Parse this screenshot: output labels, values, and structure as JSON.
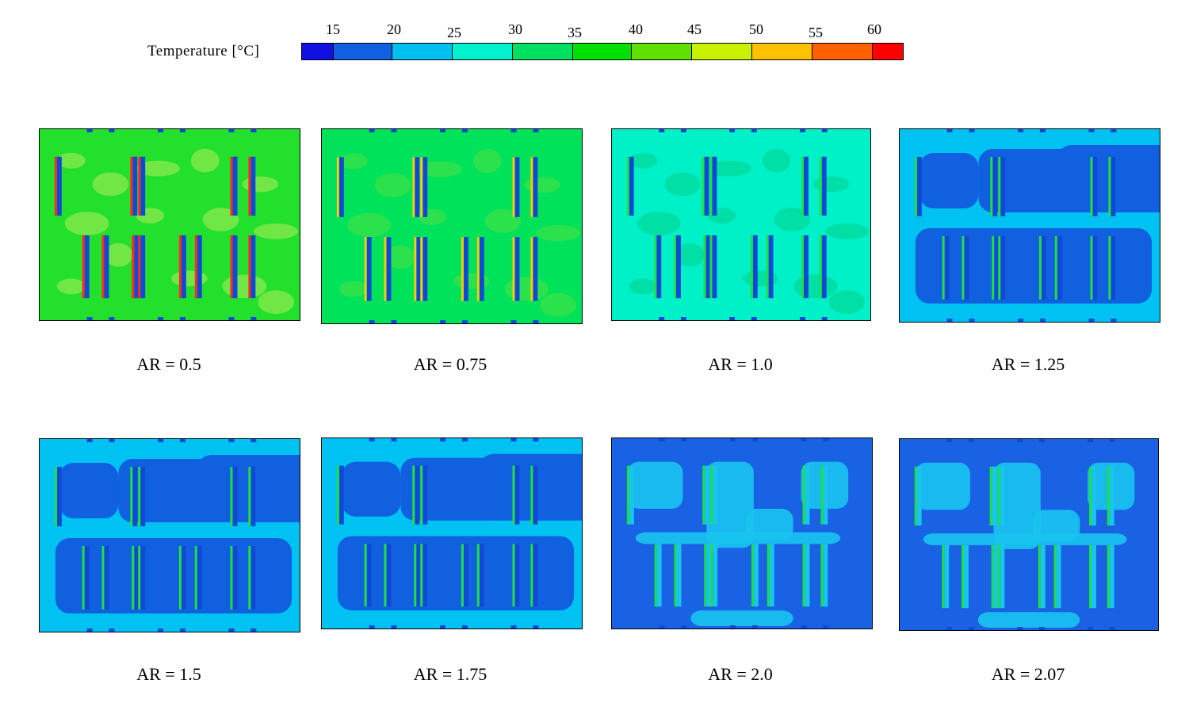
{
  "legend": {
    "title": "Temperature [°C]",
    "ticks": [
      "15",
      "20",
      "25",
      "30",
      "35",
      "40",
      "45",
      "50",
      "55",
      "60"
    ],
    "colors": [
      "#1010e0",
      "#1060e0",
      "#00c0f0",
      "#00f0d0",
      "#00e060",
      "#00e000",
      "#60e000",
      "#c8f000",
      "#ffc000",
      "#ff6000",
      "#ff0000"
    ]
  },
  "panels": [
    {
      "caption": "AR = 0.5",
      "background": "#22e02c",
      "blob_color": "#7ee84a",
      "bar_color": "#1048d8",
      "stripe_color": "#ff2a1a",
      "blob_shape": "dots"
    },
    {
      "caption": "AR = 0.75",
      "background": "#00e25a",
      "blob_color": "#33e24a",
      "bar_color": "#1048d8",
      "stripe_color": "#f0d000",
      "blob_shape": "dots"
    },
    {
      "caption": "AR = 1.0",
      "background": "#00f0c8",
      "blob_color": "#00dca0",
      "bar_color": "#1048d8",
      "stripe_color": "#20e040",
      "blob_shape": "dots"
    },
    {
      "caption": "AR = 1.25",
      "background": "#00c2f2",
      "blob_color": "#1060e0",
      "bar_color": "#1048d8",
      "stripe_color": "#20e040",
      "blob_shape": "cold"
    },
    {
      "caption": "AR = 1.5",
      "background": "#00c2f2",
      "blob_color": "#1060e0",
      "bar_color": "#1048d8",
      "stripe_color": "#20e040",
      "blob_shape": "cold"
    },
    {
      "caption": "AR = 1.75",
      "background": "#00c2f2",
      "blob_color": "#1060e0",
      "bar_color": "#1048d8",
      "stripe_color": "#20e040",
      "blob_shape": "cold"
    },
    {
      "caption": "AR = 2.0",
      "background": "#1a62e4",
      "blob_color": "#18c4f0",
      "bar_color": "#18c4f0",
      "stripe_color": "#20e040",
      "blob_shape": "warm"
    },
    {
      "caption": "AR = 2.07",
      "background": "#1a62e4",
      "blob_color": "#18c4f0",
      "bar_color": "#18c4f0",
      "stripe_color": "#20e040",
      "blob_shape": "warm"
    }
  ]
}
